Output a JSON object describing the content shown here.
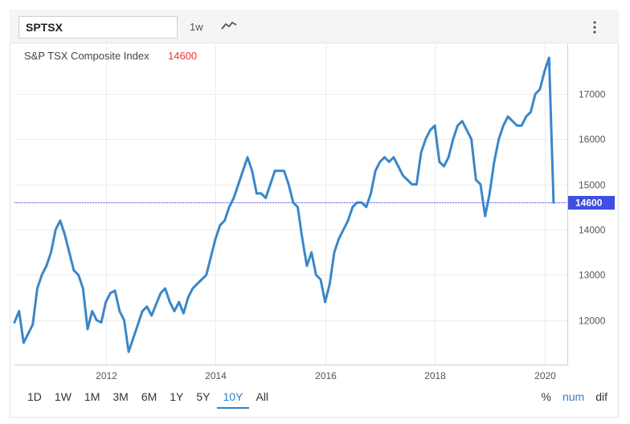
{
  "toolbar": {
    "symbol": "SPTSX",
    "interval": "1w",
    "chart_type_icon": "line-chart-icon",
    "menu_icon": "vertical-dots-icon"
  },
  "colors": {
    "line": "#3a87c9",
    "marker_line": "#2a2adb",
    "price_box": "#3f4fe0",
    "last_value_text": "#e53935",
    "active": "#2f82cf"
  },
  "range_buttons": [
    "1D",
    "1W",
    "1M",
    "3M",
    "6M",
    "1Y",
    "5Y",
    "10Y",
    "All"
  ],
  "active_range": "10Y",
  "modes": [
    "%",
    "num",
    "dif"
  ],
  "active_mode": "num",
  "chart_data": {
    "type": "line",
    "title": "S&P TSX Composite Index",
    "last_value_label": "14600",
    "last_value": 14600,
    "xlabel": "",
    "ylabel": "",
    "x_ticks": [
      "2012",
      "2014",
      "2016",
      "2018",
      "2020"
    ],
    "y_ticks": [
      12000,
      13000,
      14000,
      15000,
      16000,
      17000
    ],
    "xlim": [
      "2010-05",
      "2020-06"
    ],
    "ylim": [
      11000,
      18100
    ],
    "grid": true,
    "series": [
      {
        "x": [
          "2010-05",
          "2010-06",
          "2010-07",
          "2010-08",
          "2010-09",
          "2010-10",
          "2010-11",
          "2010-12",
          "2011-01",
          "2011-02",
          "2011-03",
          "2011-04",
          "2011-05",
          "2011-06",
          "2011-07",
          "2011-08",
          "2011-09",
          "2011-10",
          "2011-11",
          "2011-12",
          "2012-01",
          "2012-02",
          "2012-03",
          "2012-04",
          "2012-05",
          "2012-06",
          "2012-07",
          "2012-08",
          "2012-09",
          "2012-10",
          "2012-11",
          "2012-12",
          "2013-01",
          "2013-02",
          "2013-03",
          "2013-04",
          "2013-05",
          "2013-06",
          "2013-07",
          "2013-08",
          "2013-09",
          "2013-10",
          "2013-11",
          "2013-12",
          "2014-01",
          "2014-02",
          "2014-03",
          "2014-04",
          "2014-05",
          "2014-06",
          "2014-07",
          "2014-08",
          "2014-09",
          "2014-10",
          "2014-11",
          "2014-12",
          "2015-01",
          "2015-02",
          "2015-03",
          "2015-04",
          "2015-05",
          "2015-06",
          "2015-07",
          "2015-08",
          "2015-09",
          "2015-10",
          "2015-11",
          "2015-12",
          "2016-01",
          "2016-02",
          "2016-03",
          "2016-04",
          "2016-05",
          "2016-06",
          "2016-07",
          "2016-08",
          "2016-09",
          "2016-10",
          "2016-11",
          "2016-12",
          "2017-01",
          "2017-02",
          "2017-03",
          "2017-04",
          "2017-05",
          "2017-06",
          "2017-07",
          "2017-08",
          "2017-09",
          "2017-10",
          "2017-11",
          "2017-12",
          "2018-01",
          "2018-02",
          "2018-03",
          "2018-04",
          "2018-05",
          "2018-06",
          "2018-07",
          "2018-08",
          "2018-09",
          "2018-10",
          "2018-11",
          "2018-12",
          "2019-01",
          "2019-02",
          "2019-03",
          "2019-04",
          "2019-05",
          "2019-06",
          "2019-07",
          "2019-08",
          "2019-09",
          "2019-10",
          "2019-11",
          "2019-12",
          "2020-01",
          "2020-02",
          "2020-03"
        ],
        "values": [
          11950,
          12200,
          11500,
          11700,
          11900,
          12700,
          13000,
          13200,
          13500,
          14000,
          14200,
          13900,
          13500,
          13100,
          13000,
          12700,
          11800,
          12200,
          12000,
          11950,
          12400,
          12600,
          12650,
          12200,
          12000,
          11300,
          11600,
          11900,
          12200,
          12300,
          12100,
          12350,
          12600,
          12700,
          12400,
          12200,
          12400,
          12150,
          12500,
          12700,
          12800,
          12900,
          13000,
          13400,
          13800,
          14100,
          14200,
          14500,
          14700,
          15000,
          15300,
          15600,
          15300,
          14800,
          14800,
          14700,
          15000,
          15300,
          15300,
          15300,
          15000,
          14600,
          14500,
          13800,
          13200,
          13500,
          13000,
          12900,
          12400,
          12800,
          13500,
          13800,
          14000,
          14200,
          14500,
          14600,
          14600,
          14500,
          14800,
          15300,
          15500,
          15600,
          15500,
          15600,
          15400,
          15200,
          15100,
          15000,
          15000,
          15700,
          16000,
          16200,
          16300,
          15500,
          15400,
          15600,
          16000,
          16300,
          16400,
          16200,
          16000,
          15100,
          15000,
          14300,
          14800,
          15500,
          16000,
          16300,
          16500,
          16400,
          16300,
          16300,
          16500,
          16600,
          17000,
          17100,
          17500,
          17800,
          14600
        ]
      }
    ]
  }
}
